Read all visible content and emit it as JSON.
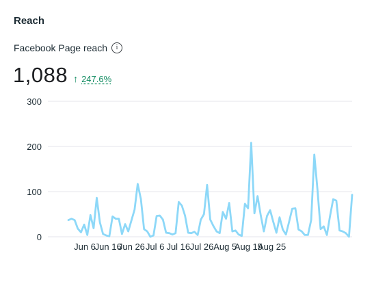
{
  "section_title": "Reach",
  "metric": {
    "label": "Facebook Page reach",
    "value": "1,088",
    "change_arrow": "↑",
    "change_percent": "247.6%",
    "change_color": "#0f8a5f"
  },
  "icons": {
    "info": "info-icon",
    "arrow": "arrow-up-icon"
  },
  "chart_data": {
    "type": "line",
    "title": "",
    "xlabel": "",
    "ylabel": "",
    "ylim": [
      0,
      300
    ],
    "yticks": [
      0,
      100,
      200,
      300
    ],
    "grid": true,
    "line_color": "#8dd8f8",
    "xtick_labels": [
      "Jun 6",
      "Jun 16",
      "Jun 26",
      "Jul 6",
      "Jul 16",
      "Jul 26",
      "Aug 5",
      "Aug 15",
      "Aug 25"
    ],
    "x_start": "May 29",
    "x_end": "Aug 29",
    "series": [
      {
        "values": [
          37,
          40,
          37,
          18,
          10,
          27,
          4,
          48,
          19,
          86,
          32,
          6,
          3,
          1,
          45,
          40,
          40,
          6,
          28,
          12,
          36,
          60,
          117,
          83,
          17,
          12,
          0,
          3,
          46,
          47,
          38,
          9,
          8,
          5,
          8,
          77,
          69,
          47,
          9,
          8,
          11,
          4,
          38,
          50,
          115,
          38,
          24,
          12,
          8,
          55,
          40,
          75,
          12,
          14,
          5,
          2,
          73,
          63,
          208,
          52,
          90,
          48,
          12,
          46,
          59,
          33,
          9,
          43,
          16,
          5,
          33,
          62,
          63,
          16,
          12,
          4,
          4,
          37,
          182,
          105,
          17,
          23,
          4,
          46,
          83,
          80,
          14,
          12,
          8,
          0,
          93
        ]
      }
    ]
  }
}
